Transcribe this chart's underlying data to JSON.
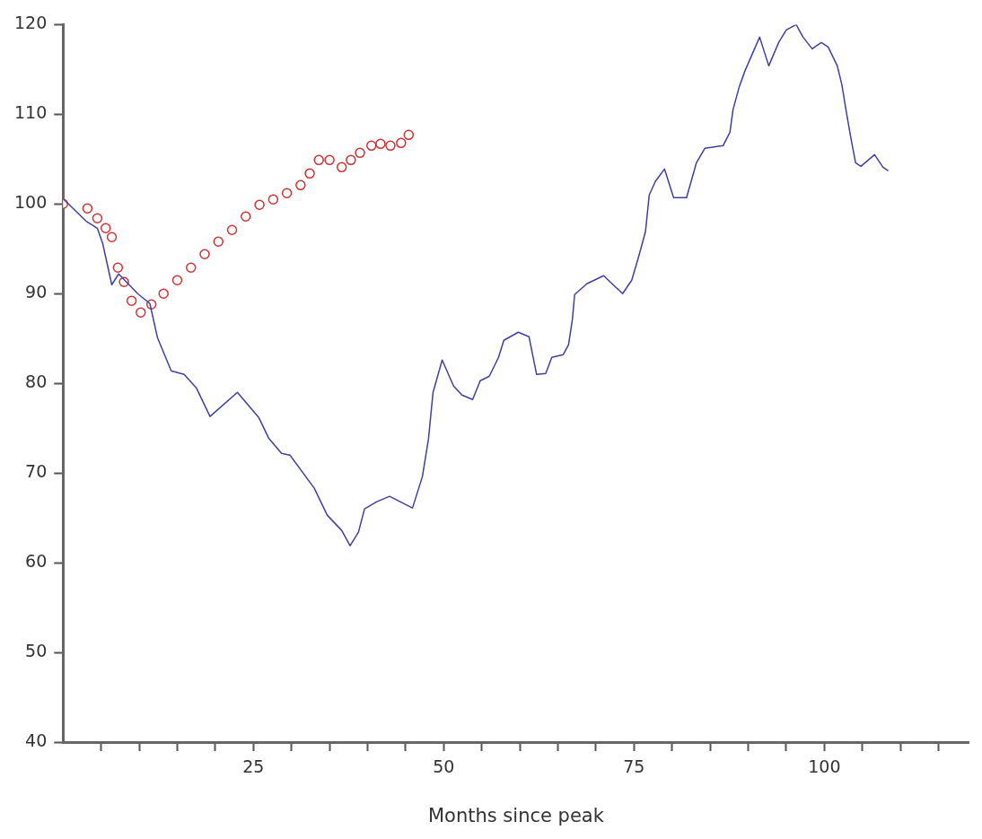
{
  "chart_data": {
    "type": "line",
    "xlabel": "Months since peak",
    "xlim": [
      0,
      119
    ],
    "ylim": [
      40,
      120
    ],
    "xticks": [
      {
        "value": 5,
        "label": null
      },
      {
        "value": 10,
        "label": null
      },
      {
        "value": 15,
        "label": null
      },
      {
        "value": 20,
        "label": null
      },
      25,
      {
        "value": 30,
        "label": null
      },
      {
        "value": 35,
        "label": null
      },
      {
        "value": 40,
        "label": null
      },
      {
        "value": 45,
        "label": null
      },
      50,
      {
        "value": 55,
        "label": null
      },
      {
        "value": 60,
        "label": null
      },
      {
        "value": 65,
        "label": null
      },
      {
        "value": 70,
        "label": null
      },
      75,
      {
        "value": 80,
        "label": null
      },
      {
        "value": 85,
        "label": null
      },
      {
        "value": 90,
        "label": null
      },
      {
        "value": 95,
        "label": null
      },
      100,
      {
        "value": 105,
        "label": null
      },
      {
        "value": 110,
        "label": null
      },
      {
        "value": 115,
        "label": null
      }
    ],
    "yticks": [
      40,
      50,
      60,
      70,
      80,
      90,
      100,
      110,
      120
    ],
    "grid": false,
    "legend": false,
    "series": [
      {
        "type": "line",
        "marker": "none",
        "color": "#40409e",
        "x": [
          0.1,
          3,
          4.5,
          5.2,
          6.4,
          7.3,
          9.8,
          11.4,
          12.4,
          14.2,
          15.9,
          17.5,
          19.3,
          22.9,
          25.7,
          27,
          28.7,
          29.8,
          33,
          34.7,
          36.6,
          37.7,
          38.8,
          39.6,
          41.2,
          42.9,
          45.9,
          47.2,
          48,
          48.6,
          49.8,
          51.3,
          52.4,
          53.8,
          54.8,
          56,
          57.2,
          57.9,
          59.8,
          61.2,
          62.2,
          63.4,
          64.2,
          65.7,
          66.4,
          66.9,
          67.2,
          68.8,
          71,
          73.5,
          74.7,
          75.6,
          76.5,
          77,
          77.8,
          79,
          80.2,
          81.9,
          83.2,
          84.3,
          86.7,
          87.6,
          88,
          88.8,
          89.6,
          91.5,
          92.7,
          94,
          95,
          96.3,
          97.2,
          98.4,
          99.6,
          100.5,
          101.7,
          102.3,
          102.9,
          103.5,
          104.1,
          104.8,
          106.6,
          107.7,
          108.4
        ],
        "values": [
          100.5,
          98.1,
          97.3,
          95.6,
          91,
          92.2,
          90,
          88.9,
          85.1,
          81.4,
          81,
          79.5,
          76.3,
          79,
          76.2,
          73.9,
          72.2,
          72,
          68.3,
          65.3,
          63.6,
          61.9,
          63.4,
          66,
          66.8,
          67.4,
          66.1,
          69.6,
          73.8,
          79,
          82.6,
          79.7,
          78.7,
          78.2,
          80.3,
          80.8,
          82.9,
          84.8,
          85.7,
          85.2,
          81,
          81.1,
          82.9,
          83.2,
          84.3,
          87.1,
          89.9,
          91.1,
          92,
          90,
          91.5,
          94.1,
          96.9,
          101,
          102.5,
          103.9,
          100.7,
          100.7,
          104.6,
          106.2,
          106.5,
          108,
          110.5,
          113,
          114.9,
          118.6,
          115.4,
          118,
          119.4,
          120,
          118.6,
          117.3,
          118,
          117.5,
          115.4,
          113.3,
          110.2,
          107.3,
          104.6,
          104.2,
          105.5,
          104.1,
          103.7
        ]
      },
      {
        "type": "scatter",
        "marker": "circle",
        "color": "#cc3333",
        "x": [
          0,
          3.2,
          4.5,
          5.6,
          6.4,
          7.2,
          8,
          9,
          10.2,
          11.6,
          13.2,
          15,
          16.8,
          18.6,
          20.4,
          22.2,
          24,
          25.8,
          27.6,
          29.4,
          31.2,
          32.4,
          33.6,
          35,
          36.6,
          37.8,
          39,
          40.5,
          41.7,
          43,
          44.4,
          45.4
        ],
        "values": [
          100,
          99.5,
          98.4,
          97.3,
          96.3,
          92.9,
          91.3,
          89.2,
          87.9,
          88.8,
          90,
          91.5,
          92.9,
          94.4,
          95.8,
          97.1,
          98.6,
          99.9,
          100.5,
          101.2,
          102.1,
          103.4,
          104.9,
          104.9,
          104.1,
          104.9,
          105.7,
          106.5,
          106.7,
          106.5,
          106.8,
          107.7
        ]
      }
    ]
  }
}
